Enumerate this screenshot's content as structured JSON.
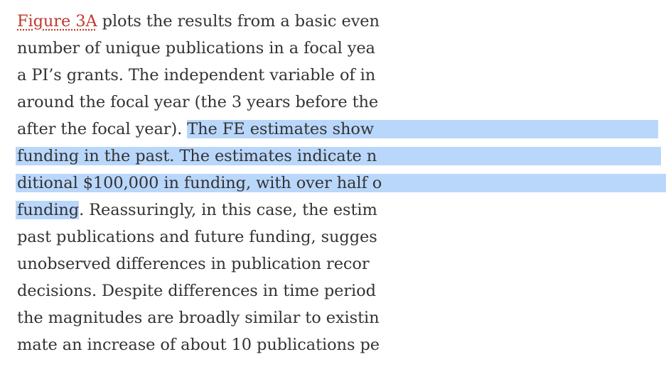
{
  "paragraph": {
    "line1": {
      "link": "Figure 3A",
      "text": " plots the results from a basic even"
    },
    "line2": "number of unique publications in a focal yea",
    "line3": "a PI’s grants. The independent variable of in",
    "line4": "around the focal year (the 3 years before the",
    "line5": {
      "before": "after the focal year). ",
      "highlighted": "The FE estimates show"
    },
    "line6": "funding in the past. The estimates indicate n",
    "line7": "ditional $100,000 in funding, with over half o",
    "line8": {
      "highlighted": "funding",
      "after": ". Reassuringly, in this case, the estim"
    },
    "line9": "past publications and future funding, sugges",
    "line10": "unobserved differences in publication recor",
    "line11": "decisions. Despite differences in time period",
    "line12": "the magnitudes are broadly similar to existin",
    "line13": "mate an increase of about 10 publications pe"
  },
  "colors": {
    "text": "#333333",
    "link": "#c0392b",
    "selection": "#b9d7fb"
  }
}
